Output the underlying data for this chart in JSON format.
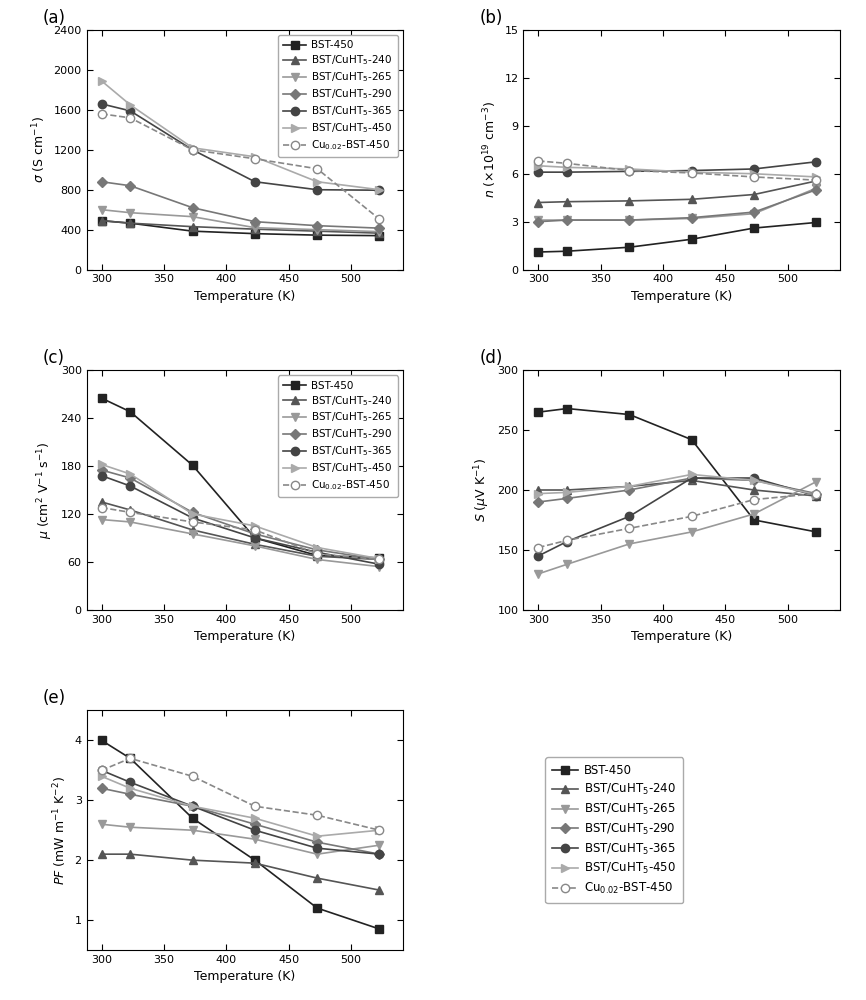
{
  "temp": [
    300,
    323,
    373,
    423,
    473,
    523
  ],
  "series_labels": [
    "BST-450",
    "BST/CuHT$_5$-240",
    "BST/CuHT$_5$-265",
    "BST/CuHT$_5$-290",
    "BST/CuHT$_5$-365",
    "BST/CuHT$_5$-450",
    "Cu$_{0.02}$-BST-450"
  ],
  "markers": [
    "s",
    "^",
    "v",
    "D",
    "o",
    ">",
    "o"
  ],
  "colors": [
    "#1a1a1a",
    "#555555",
    "#999999",
    "#777777",
    "#333333",
    "#aaaaaa",
    "#aaaaaa"
  ],
  "open_marker": [
    false,
    false,
    false,
    false,
    false,
    false,
    true
  ],
  "sigma": {
    "BST-450": [
      490,
      465,
      385,
      360,
      345,
      340
    ],
    "BST/CuHT5-240": [
      490,
      465,
      430,
      405,
      385,
      365
    ],
    "BST/CuHT5-265": [
      600,
      570,
      530,
      420,
      400,
      380
    ],
    "BST/CuHT5-290": [
      880,
      840,
      620,
      480,
      440,
      415
    ],
    "BST/CuHT5-365": [
      1660,
      1590,
      1200,
      880,
      800,
      795
    ],
    "BST/CuHT5-450": [
      1890,
      1650,
      1220,
      1130,
      880,
      800
    ],
    "Cu002-BST-450": [
      1560,
      1520,
      1200,
      1110,
      1010,
      505
    ]
  },
  "n": {
    "BST-450": [
      1.1,
      1.15,
      1.4,
      1.9,
      2.6,
      2.95
    ],
    "BST/CuHT5-240": [
      4.2,
      4.25,
      4.3,
      4.4,
      4.7,
      5.55
    ],
    "BST/CuHT5-265": [
      3.1,
      3.1,
      3.1,
      3.2,
      3.5,
      5.1
    ],
    "BST/CuHT5-290": [
      3.0,
      3.1,
      3.1,
      3.25,
      3.6,
      5.0
    ],
    "BST/CuHT5-365": [
      6.1,
      6.1,
      6.15,
      6.2,
      6.3,
      6.75
    ],
    "BST/CuHT5-450": [
      6.5,
      6.4,
      6.3,
      6.1,
      6.0,
      5.8
    ],
    "Cu002-BST-450": [
      6.8,
      6.65,
      6.2,
      6.05,
      5.8,
      5.6
    ]
  },
  "mu": {
    "BST-450": [
      265,
      248,
      181,
      90,
      68,
      65
    ],
    "BST/CuHT5-240": [
      135,
      125,
      100,
      82,
      67,
      63
    ],
    "BST/CuHT5-265": [
      113,
      110,
      95,
      80,
      63,
      54
    ],
    "BST/CuHT5-290": [
      175,
      165,
      122,
      95,
      75,
      63
    ],
    "BST/CuHT5-365": [
      168,
      155,
      115,
      90,
      72,
      57
    ],
    "BST/CuHT5-450": [
      182,
      170,
      120,
      105,
      78,
      64
    ],
    "Cu002-BST-450": [
      128,
      122,
      110,
      100,
      70,
      63
    ]
  },
  "S": {
    "BST-450": [
      265,
      268,
      263,
      242,
      175,
      165
    ],
    "BST/CuHT5-240": [
      200,
      200,
      203,
      208,
      200,
      195
    ],
    "BST/CuHT5-265": [
      130,
      138,
      155,
      165,
      180,
      207
    ],
    "BST/CuHT5-290": [
      190,
      193,
      200,
      210,
      208,
      197
    ],
    "BST/CuHT5-365": [
      145,
      157,
      178,
      210,
      210,
      195
    ],
    "BST/CuHT5-450": [
      197,
      198,
      203,
      213,
      208,
      196
    ],
    "Cu002-BST-450": [
      152,
      158,
      168,
      178,
      192,
      197
    ]
  },
  "PF": {
    "BST-450": [
      4.0,
      3.7,
      2.7,
      2.0,
      1.2,
      0.85
    ],
    "BST/CuHT5-240": [
      2.1,
      2.1,
      2.0,
      1.95,
      1.7,
      1.5
    ],
    "BST/CuHT5-265": [
      2.6,
      2.55,
      2.5,
      2.35,
      2.1,
      2.25
    ],
    "BST/CuHT5-290": [
      3.2,
      3.1,
      2.9,
      2.6,
      2.3,
      2.1
    ],
    "BST/CuHT5-365": [
      3.5,
      3.3,
      2.9,
      2.5,
      2.2,
      2.1
    ],
    "BST/CuHT5-450": [
      3.4,
      3.2,
      2.9,
      2.7,
      2.4,
      2.5
    ],
    "Cu002-BST-450": [
      3.5,
      3.7,
      3.4,
      2.9,
      2.75,
      2.5
    ]
  },
  "sigma_ylim": [
    0,
    2400
  ],
  "sigma_yticks": [
    0,
    400,
    800,
    1200,
    1600,
    2000,
    2400
  ],
  "n_ylim": [
    0,
    15
  ],
  "n_yticks": [
    0,
    3,
    6,
    9,
    12,
    15
  ],
  "mu_ylim": [
    0,
    300
  ],
  "mu_yticks": [
    0,
    60,
    120,
    180,
    240,
    300
  ],
  "S_ylim": [
    100,
    300
  ],
  "S_yticks": [
    100,
    150,
    200,
    250,
    300
  ],
  "PF_ylim": [
    0.5,
    4.5
  ],
  "PF_yticks": [
    1,
    2,
    3,
    4
  ],
  "xlim": [
    288,
    542
  ],
  "xticks": [
    300,
    350,
    400,
    450,
    500
  ]
}
